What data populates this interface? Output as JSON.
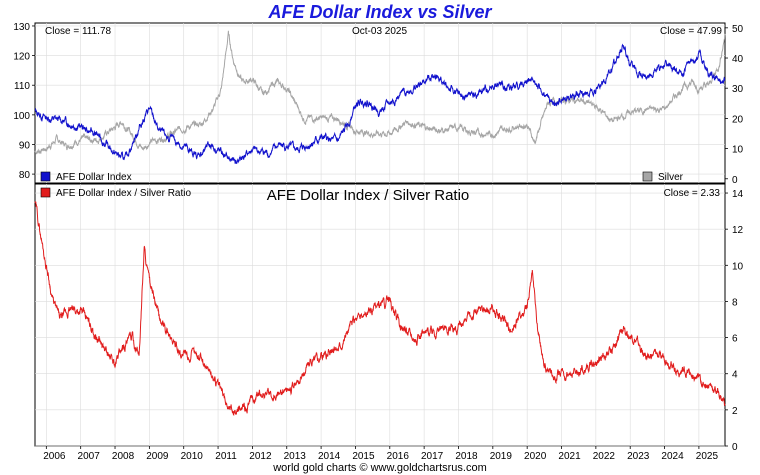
{
  "title": "AFE Dollar Index vs Silver",
  "footer": "world gold charts © www.goldchartsrus.com",
  "colors": {
    "dollar": "#1111cc",
    "silver": "#a6a6a6",
    "ratio": "#e11d1d",
    "title": "#1a1adc",
    "grid": "#dcdcdc"
  },
  "chart_data": [
    {
      "type": "line",
      "title": "AFE Dollar Index vs Silver",
      "date_label": "Oct-03 2025",
      "left_close_label": "Close = 111.78",
      "right_close_label": "Close = 47.99",
      "x_range": [
        2005.67,
        2025.76
      ],
      "y_left": {
        "label": "AFE Dollar Index",
        "range": [
          77,
          131
        ],
        "ticks": [
          80,
          90,
          100,
          110,
          120,
          130
        ]
      },
      "y_right": {
        "label": "Silver",
        "range": [
          -1.4,
          51.6
        ],
        "ticks": [
          0,
          10,
          20,
          30,
          40,
          50
        ]
      },
      "series": [
        {
          "name": "AFE Dollar Index",
          "axis": "left",
          "x": [
            2005.67,
            2006.0,
            2006.5,
            2007.0,
            2007.5,
            2008.0,
            2008.3,
            2008.8,
            2009.0,
            2009.3,
            2009.9,
            2010.4,
            2010.8,
            2011.3,
            2011.5,
            2012.0,
            2012.5,
            2012.8,
            2013.3,
            2013.8,
            2014.0,
            2014.5,
            2014.8,
            2015.0,
            2015.3,
            2015.7,
            2016.0,
            2016.5,
            2016.9,
            2017.3,
            2017.7,
            2018.1,
            2018.6,
            2019.0,
            2019.5,
            2020.0,
            2020.2,
            2020.4,
            2020.8,
            2021.0,
            2021.5,
            2022.0,
            2022.5,
            2022.8,
            2023.0,
            2023.5,
            2024.0,
            2024.5,
            2024.8,
            2025.0,
            2025.3,
            2025.5,
            2025.76
          ],
          "values": [
            101,
            99,
            98,
            96,
            93,
            87,
            85,
            98,
            102,
            94,
            90,
            86,
            90,
            85,
            84,
            88,
            87,
            90,
            88,
            91,
            92,
            91,
            97,
            103,
            105,
            101,
            104,
            108,
            110,
            114,
            109,
            106,
            107,
            110,
            109,
            111,
            113,
            108,
            103,
            105,
            107,
            108,
            116,
            124,
            116,
            113,
            117,
            114,
            118,
            121,
            113,
            112,
            111.78
          ]
        },
        {
          "name": "Silver",
          "axis": "right",
          "x": [
            2005.67,
            2006.0,
            2006.3,
            2006.6,
            2007.0,
            2007.5,
            2008.0,
            2008.2,
            2008.8,
            2009.0,
            2009.5,
            2010.0,
            2010.5,
            2010.9,
            2011.1,
            2011.3,
            2011.45,
            2011.7,
            2012.0,
            2012.3,
            2012.7,
            2013.0,
            2013.3,
            2013.5,
            2014.0,
            2014.5,
            2015.0,
            2015.5,
            2016.0,
            2016.5,
            2017.0,
            2017.5,
            2018.0,
            2018.5,
            2019.0,
            2019.5,
            2020.0,
            2020.22,
            2020.6,
            2021.0,
            2021.5,
            2022.0,
            2022.5,
            2023.0,
            2023.5,
            2024.0,
            2024.5,
            2024.8,
            2025.0,
            2025.3,
            2025.6,
            2025.76
          ],
          "values": [
            9,
            10,
            13,
            11,
            13,
            13,
            17,
            19,
            10,
            12,
            14,
            17,
            18,
            24,
            30,
            48,
            39,
            32,
            33,
            28,
            32,
            30,
            24,
            20,
            20,
            20,
            16,
            15,
            15,
            19,
            17,
            16,
            17,
            15,
            15,
            17,
            18,
            12,
            25,
            26,
            26,
            24,
            19,
            22,
            23,
            23,
            30,
            32,
            30,
            31,
            38,
            47.99
          ]
        },
        {
          "name": "AFE Dollar Index / Silver Ratio",
          "axis": "ratio",
          "panel": "lower",
          "x": [
            2005.67,
            2005.9,
            2006.2,
            2006.4,
            2006.7,
            2007.0,
            2007.5,
            2007.8,
            2008.0,
            2008.2,
            2008.5,
            2008.7,
            2008.85,
            2009.0,
            2009.3,
            2009.6,
            2010.0,
            2010.5,
            2010.8,
            2011.1,
            2011.3,
            2011.6,
            2011.9,
            2012.3,
            2012.6,
            2012.9,
            2013.3,
            2013.6,
            2014.0,
            2014.5,
            2015.0,
            2015.5,
            2016.0,
            2016.2,
            2016.4,
            2016.8,
            2017.3,
            2018.0,
            2018.5,
            2019.0,
            2019.5,
            2020.0,
            2020.15,
            2020.3,
            2020.5,
            2020.8,
            2021.3,
            2021.8,
            2022.4,
            2022.8,
            2023.1,
            2023.4,
            2024.0,
            2024.4,
            2024.7,
            2025.0,
            2025.3,
            2025.6,
            2025.76
          ],
          "values": [
            13.5,
            11,
            8,
            7,
            7.5,
            7.5,
            6,
            5,
            4.5,
            5.5,
            6,
            5,
            11,
            9,
            7,
            6,
            5,
            5,
            4,
            3,
            2.2,
            1.9,
            2.3,
            3,
            2.7,
            3.1,
            3.4,
            4.5,
            5,
            5.5,
            7,
            7.5,
            8,
            7,
            6.5,
            6,
            6.5,
            6.5,
            7.5,
            7.5,
            6.5,
            7.5,
            9.5,
            6.5,
            4.5,
            4,
            4,
            4.5,
            5.2,
            6.5,
            6,
            5,
            5,
            4.2,
            4,
            3.6,
            3.4,
            2.8,
            2.33
          ]
        }
      ]
    },
    {
      "type": "line",
      "title": "AFE Dollar Index / Silver Ratio",
      "legend": "AFE Dollar Index / Silver Ratio",
      "close_label": "Close = 2.33",
      "y_right": {
        "range": [
          0,
          14.5
        ],
        "ticks": [
          0,
          2,
          4,
          6,
          8,
          10,
          12,
          14
        ]
      },
      "x_ticks": [
        2006,
        2007,
        2008,
        2009,
        2010,
        2011,
        2012,
        2013,
        2014,
        2015,
        2016,
        2017,
        2018,
        2019,
        2020,
        2021,
        2022,
        2023,
        2024,
        2025
      ]
    }
  ]
}
